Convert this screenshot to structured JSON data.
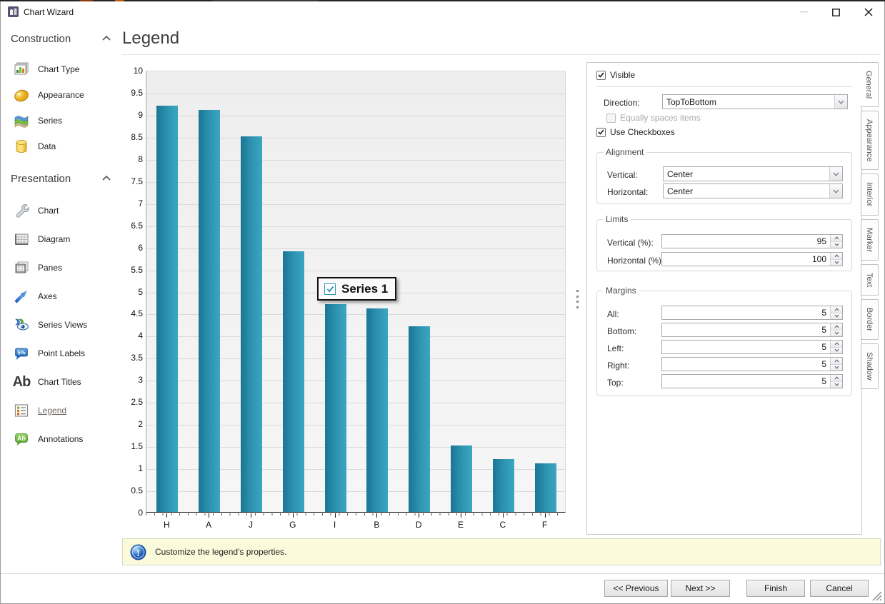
{
  "window": {
    "title": "Chart Wizard"
  },
  "sidebar": {
    "sections": [
      {
        "title": "Construction",
        "items": [
          {
            "label": "Chart Type"
          },
          {
            "label": "Appearance"
          },
          {
            "label": "Series"
          },
          {
            "label": "Data"
          }
        ]
      },
      {
        "title": "Presentation",
        "items": [
          {
            "label": "Chart"
          },
          {
            "label": "Diagram"
          },
          {
            "label": "Panes"
          },
          {
            "label": "Axes"
          },
          {
            "label": "Series Views"
          },
          {
            "label": "Point Labels",
            "badge": "5%"
          },
          {
            "label": "Chart Titles",
            "badge": "Ab"
          },
          {
            "label": "Legend",
            "selected": true
          },
          {
            "label": "Annotations",
            "badge": "Ab"
          }
        ]
      }
    ]
  },
  "page": {
    "title": "Legend"
  },
  "chart_data": {
    "type": "bar",
    "title": "",
    "categories": [
      "H",
      "A",
      "J",
      "G",
      "I",
      "B",
      "D",
      "E",
      "C",
      "F"
    ],
    "values": [
      9.2,
      9.1,
      8.5,
      5.9,
      4.7,
      4.6,
      4.2,
      1.5,
      1.2,
      1.1
    ],
    "series": [
      {
        "name": "Series 1",
        "values": [
          9.2,
          9.1,
          8.5,
          5.9,
          4.7,
          4.6,
          4.2,
          1.5,
          1.2,
          1.1
        ]
      }
    ],
    "xlabel": "",
    "ylabel": "",
    "ylim": [
      0,
      10
    ],
    "yticks": [
      0,
      0.5,
      1,
      1.5,
      2,
      2.5,
      3,
      3.5,
      4,
      4.5,
      5,
      5.5,
      6,
      6.5,
      7,
      7.5,
      8,
      8.5,
      9,
      9.5,
      10
    ],
    "grid": "horizontal",
    "legend_position": "floating-center",
    "bar_color_start": "#1a7694",
    "bar_color_mid": "#2e95b3",
    "bar_color_end": "#3ba6c1"
  },
  "legend": {
    "label": "Series 1",
    "checked": true
  },
  "panel": {
    "visible_label": "Visible",
    "visible_checked": true,
    "direction_label": "Direction:",
    "direction_value": "TopToBottom",
    "equally_label": "Equally spaces items",
    "equally_checked": false,
    "use_checkboxes_label": "Use Checkboxes",
    "use_checkboxes_checked": true,
    "alignment": {
      "title": "Alignment",
      "vertical_label": "Vertical:",
      "vertical_value": "Center",
      "horizontal_label": "Horizontal:",
      "horizontal_value": "Center"
    },
    "limits": {
      "title": "Limits",
      "rows": [
        {
          "label": "Vertical (%):",
          "value": "95"
        },
        {
          "label": "Horizontal (%):",
          "value": "100"
        }
      ]
    },
    "margins": {
      "title": "Margins",
      "rows": [
        {
          "label": "All:",
          "value": "5"
        },
        {
          "label": "Bottom:",
          "value": "5"
        },
        {
          "label": "Left:",
          "value": "5"
        },
        {
          "label": "Right:",
          "value": "5"
        },
        {
          "label": "Top:",
          "value": "5"
        }
      ]
    },
    "tabs": [
      {
        "label": "General",
        "selected": true
      },
      {
        "label": "Appearance",
        "selected": false
      },
      {
        "label": "Interior",
        "selected": false
      },
      {
        "label": "Marker",
        "selected": false
      },
      {
        "label": "Text",
        "selected": false
      },
      {
        "label": "Border",
        "selected": false
      },
      {
        "label": "Shadow",
        "selected": false
      }
    ]
  },
  "status": {
    "message": "Customize the legend's properties."
  },
  "footer": {
    "buttons": [
      {
        "label": "<< Previous"
      },
      {
        "label": "Next >>"
      },
      {
        "label": "Finish"
      },
      {
        "label": "Cancel"
      }
    ]
  },
  "colors": {
    "accent_teal": "#2e95b3",
    "status_bg": "#fbfbdc",
    "selected_item": "#6f6a66"
  }
}
